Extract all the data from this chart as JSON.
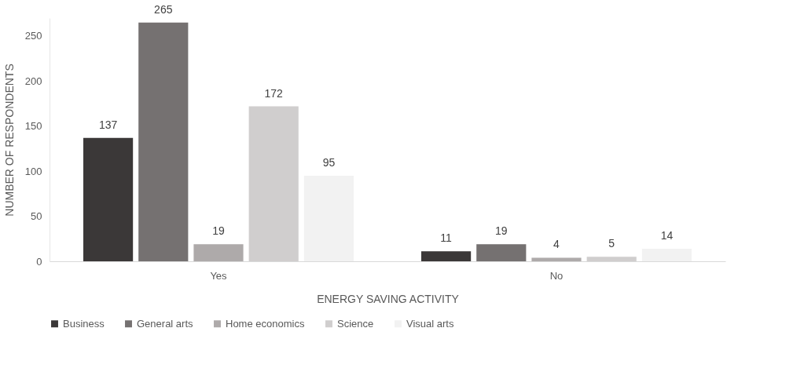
{
  "chart_data": {
    "type": "bar",
    "xlabel": "ENERGY SAVING ACTIVITY",
    "ylabel": "NUMBER OF RESPONDENTS",
    "categories": [
      "Yes",
      "No"
    ],
    "series": [
      {
        "name": "Business",
        "color": "#3b3838",
        "values": [
          137,
          11
        ]
      },
      {
        "name": "General arts",
        "color": "#757171",
        "values": [
          265,
          19
        ]
      },
      {
        "name": "Home economics",
        "color": "#aeaaaa",
        "values": [
          19,
          4
        ]
      },
      {
        "name": "Science",
        "color": "#d0cece",
        "values": [
          172,
          5
        ]
      },
      {
        "name": "Visual arts",
        "color": "#f2f2f2",
        "values": [
          95,
          14
        ]
      }
    ],
    "ylim": [
      0,
      270
    ],
    "yticks": [
      0,
      50,
      100,
      150,
      200,
      250
    ],
    "grid": false,
    "legend": "bottom",
    "data_labels": true
  }
}
